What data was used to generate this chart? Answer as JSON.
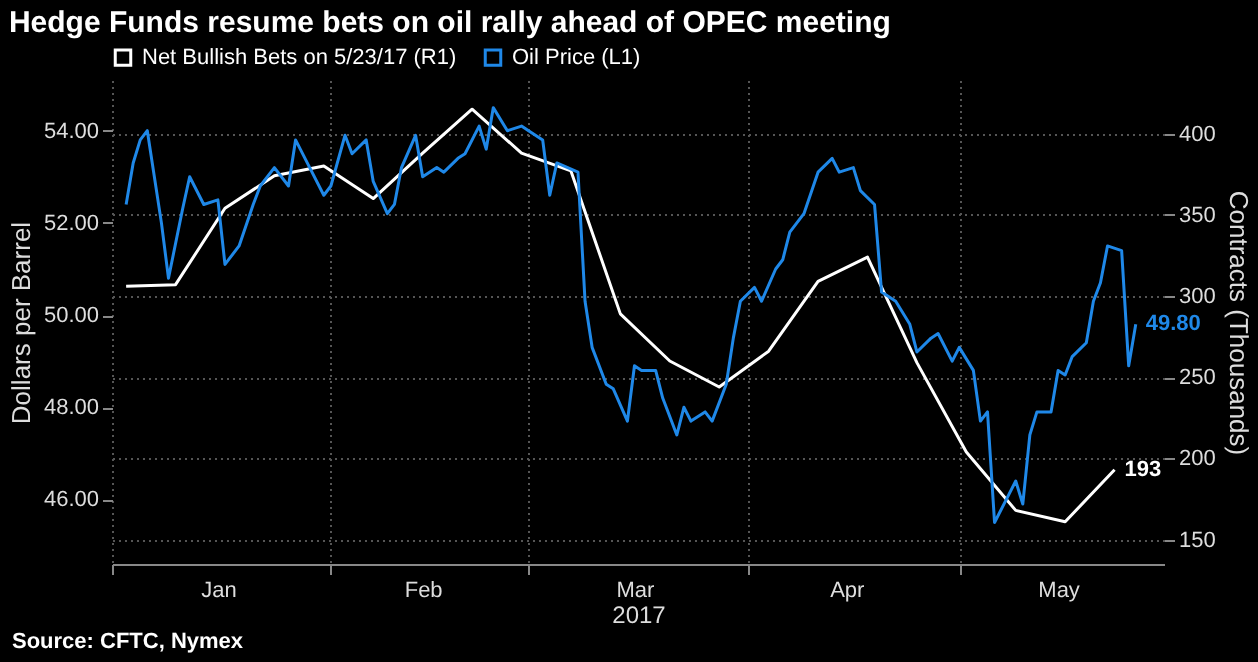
{
  "chart_data": {
    "type": "line",
    "title": "Hedge Funds resume bets on oil rally ahead of OPEC meeting",
    "xlabel": "2017",
    "ylabel": "Dollars per Barrel",
    "y2label": "Contracts (Thousands)",
    "series": [
      {
        "name": "Net Bullish Bets on 5/23/17 (R1)",
        "color": "#ffffff",
        "axis": "y2",
        "x": [
          "2017-01-03",
          "2017-01-10",
          "2017-01-17",
          "2017-01-24",
          "2017-01-31",
          "2017-02-07",
          "2017-02-14",
          "2017-02-21",
          "2017-02-28",
          "2017-03-07",
          "2017-03-14",
          "2017-03-21",
          "2017-03-28",
          "2017-04-04",
          "2017-04-11",
          "2017-04-18",
          "2017-04-25",
          "2017-05-02",
          "2017-05-09",
          "2017-05-16",
          "2017-05-23"
        ],
        "values": [
          306,
          307,
          354,
          374,
          380,
          360,
          388,
          415,
          388,
          377,
          289,
          260,
          244,
          266,
          309,
          324,
          259,
          204,
          168,
          161,
          193
        ],
        "value_labels": [
          null,
          null,
          null,
          null,
          null,
          null,
          null,
          null,
          null,
          null,
          null,
          null,
          null,
          null,
          null,
          null,
          null,
          null,
          null,
          null,
          "193"
        ]
      },
      {
        "name": "Oil Price (L1)",
        "color": "#1f88e8",
        "axis": "y",
        "x": [
          "2017-01-03",
          "2017-01-04",
          "2017-01-05",
          "2017-01-06",
          "2017-01-08",
          "2017-01-09",
          "2017-01-11",
          "2017-01-12",
          "2017-01-14",
          "2017-01-16",
          "2017-01-17",
          "2017-01-19",
          "2017-01-21",
          "2017-01-22",
          "2017-01-24",
          "2017-01-26",
          "2017-01-27",
          "2017-01-29",
          "2017-01-31",
          "2017-02-01",
          "2017-02-03",
          "2017-02-04",
          "2017-02-06",
          "2017-02-07",
          "2017-02-09",
          "2017-02-10",
          "2017-02-11",
          "2017-02-13",
          "2017-02-14",
          "2017-02-16",
          "2017-02-17",
          "2017-02-19",
          "2017-02-20",
          "2017-02-22",
          "2017-02-23",
          "2017-02-24",
          "2017-02-26",
          "2017-02-28",
          "2017-03-01",
          "2017-03-03",
          "2017-03-04",
          "2017-03-05",
          "2017-03-08",
          "2017-03-09",
          "2017-03-10",
          "2017-03-12",
          "2017-03-13",
          "2017-03-15",
          "2017-03-16",
          "2017-03-17",
          "2017-03-19",
          "2017-03-20",
          "2017-03-22",
          "2017-03-23",
          "2017-03-24",
          "2017-03-26",
          "2017-03-27",
          "2017-03-29",
          "2017-03-30",
          "2017-03-31",
          "2017-04-02",
          "2017-04-03",
          "2017-04-05",
          "2017-04-06",
          "2017-04-07",
          "2017-04-09",
          "2017-04-11",
          "2017-04-13",
          "2017-04-14",
          "2017-04-16",
          "2017-04-17",
          "2017-04-19",
          "2017-04-20",
          "2017-04-22",
          "2017-04-24",
          "2017-04-25",
          "2017-04-27",
          "2017-04-28",
          "2017-04-30",
          "2017-05-01",
          "2017-05-03",
          "2017-05-04",
          "2017-05-05",
          "2017-05-06",
          "2017-05-08",
          "2017-05-09",
          "2017-05-10",
          "2017-05-11",
          "2017-05-12",
          "2017-05-14",
          "2017-05-15",
          "2017-05-16",
          "2017-05-17",
          "2017-05-19",
          "2017-05-20",
          "2017-05-21",
          "2017-05-22",
          "2017-05-24",
          "2017-05-25",
          "2017-05-26"
        ],
        "values": [
          52.4,
          53.3,
          53.8,
          54.0,
          52.0,
          50.8,
          52.3,
          53.0,
          52.4,
          52.5,
          51.1,
          51.5,
          52.4,
          52.8,
          53.2,
          52.8,
          53.8,
          53.2,
          52.6,
          52.8,
          53.9,
          53.5,
          53.8,
          52.9,
          52.2,
          52.4,
          53.2,
          53.9,
          53.0,
          53.2,
          53.1,
          53.4,
          53.5,
          54.1,
          53.6,
          54.5,
          54.0,
          54.1,
          54.0,
          53.8,
          52.6,
          53.3,
          53.1,
          50.3,
          49.3,
          48.5,
          48.4,
          47.7,
          48.9,
          48.8,
          48.8,
          48.2,
          47.4,
          48.0,
          47.7,
          47.9,
          47.7,
          48.5,
          49.5,
          50.3,
          50.6,
          50.3,
          51.0,
          51.2,
          51.8,
          52.2,
          53.1,
          53.4,
          53.1,
          53.2,
          52.7,
          52.4,
          50.5,
          50.3,
          49.8,
          49.2,
          49.5,
          49.6,
          49.0,
          49.3,
          48.8,
          47.7,
          47.9,
          45.5,
          46.1,
          46.4,
          45.9,
          47.4,
          47.9,
          47.9,
          48.8,
          48.7,
          49.1,
          49.4,
          50.3,
          50.7,
          51.5,
          51.4,
          48.9,
          49.8
        ],
        "value_labels": [
          null,
          null,
          null,
          null,
          null,
          null,
          null,
          null,
          null,
          null,
          null,
          null,
          null,
          null,
          null,
          null,
          null,
          null,
          null,
          null,
          null,
          null,
          null,
          null,
          null,
          null,
          null,
          null,
          null,
          null,
          null,
          null,
          null,
          null,
          null,
          null,
          null,
          null,
          null,
          null,
          null,
          null,
          null,
          null,
          null,
          null,
          null,
          null,
          null,
          null,
          null,
          null,
          null,
          null,
          null,
          null,
          null,
          null,
          null,
          null,
          null,
          null,
          null,
          null,
          null,
          null,
          null,
          null,
          null,
          null,
          null,
          null,
          null,
          null,
          null,
          null,
          null,
          null,
          null,
          null,
          null,
          null,
          null,
          null,
          null,
          null,
          null,
          null,
          null,
          null,
          null,
          null,
          null,
          null,
          null,
          null,
          null,
          null,
          null,
          "49.80"
        ]
      }
    ],
    "xlim": [
      "2017-01-01",
      "2017-05-30"
    ],
    "xticks": [
      {
        "value": "2017-01-01",
        "label": null
      },
      {
        "value": "2017-01-16",
        "label": "Jan"
      },
      {
        "value": "2017-02-01",
        "label": null
      },
      {
        "value": "2017-02-14",
        "label": "Feb"
      },
      {
        "value": "2017-03-01",
        "label": null
      },
      {
        "value": "2017-03-16",
        "label": "Mar"
      },
      {
        "value": "2017-04-01",
        "label": null
      },
      {
        "value": "2017-04-15",
        "label": "Apr"
      },
      {
        "value": "2017-05-01",
        "label": null
      },
      {
        "value": "2017-05-15",
        "label": "May"
      }
    ],
    "ylim": [
      44.6,
      55.1
    ],
    "yticks": [
      {
        "value": 46,
        "label": "46.00"
      },
      {
        "value": 48,
        "label": "48.00"
      },
      {
        "value": 50,
        "label": "50.00"
      },
      {
        "value": 52,
        "label": "52.00"
      },
      {
        "value": 54,
        "label": "54.00"
      }
    ],
    "y2lim": [
      135,
      433
    ],
    "y2ticks": [
      150,
      200,
      250,
      300,
      350,
      400
    ],
    "grid": true,
    "legend": "top left",
    "marker": "none",
    "line_style": "solid",
    "annotations": [
      "Source: CFTC, Nymex"
    ]
  }
}
